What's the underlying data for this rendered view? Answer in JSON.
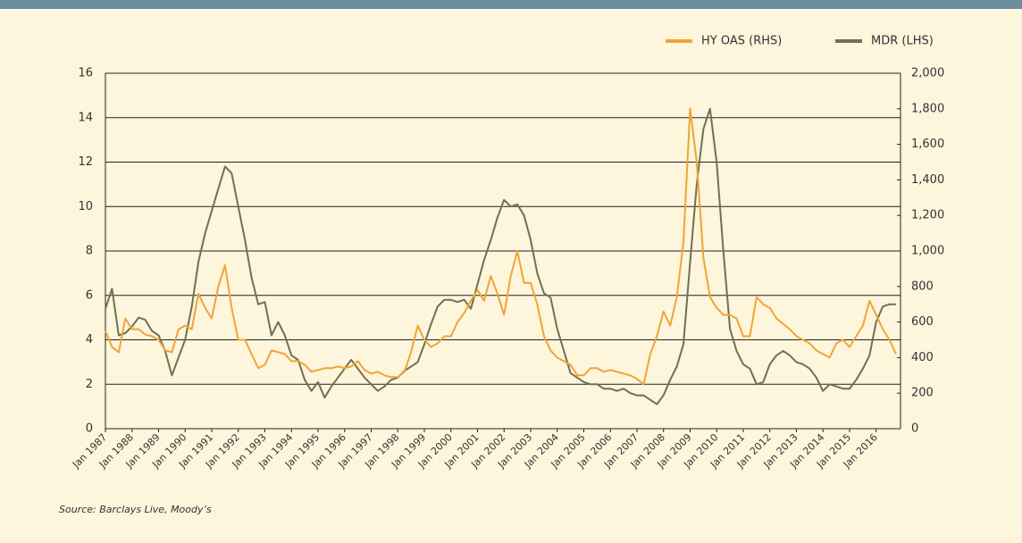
{
  "chart_data": {
    "type": "line",
    "source": "Source: Barclays Live, Moody’s",
    "x": [
      "1987-01",
      "1987-04",
      "1987-07",
      "1987-10",
      "1988-01",
      "1988-04",
      "1988-07",
      "1988-10",
      "1989-01",
      "1989-04",
      "1989-07",
      "1989-10",
      "1990-01",
      "1990-04",
      "1990-07",
      "1990-10",
      "1991-01",
      "1991-04",
      "1991-07",
      "1991-10",
      "1992-01",
      "1992-04",
      "1992-07",
      "1992-10",
      "1993-01",
      "1993-04",
      "1993-07",
      "1993-10",
      "1994-01",
      "1994-04",
      "1994-07",
      "1994-10",
      "1995-01",
      "1995-04",
      "1995-07",
      "1995-10",
      "1996-01",
      "1996-04",
      "1996-07",
      "1996-10",
      "1997-01",
      "1997-04",
      "1997-07",
      "1997-10",
      "1998-01",
      "1998-04",
      "1998-07",
      "1998-10",
      "1999-01",
      "1999-04",
      "1999-07",
      "1999-10",
      "2000-01",
      "2000-04",
      "2000-07",
      "2000-10",
      "2001-01",
      "2001-04",
      "2001-07",
      "2001-10",
      "2002-01",
      "2002-04",
      "2002-07",
      "2002-10",
      "2003-01",
      "2003-04",
      "2003-07",
      "2003-10",
      "2004-01",
      "2004-04",
      "2004-07",
      "2004-10",
      "2005-01",
      "2005-04",
      "2005-07",
      "2005-10",
      "2006-01",
      "2006-04",
      "2006-07",
      "2006-10",
      "2007-01",
      "2007-04",
      "2007-07",
      "2007-10",
      "2008-01",
      "2008-04",
      "2008-07",
      "2008-10",
      "2009-01",
      "2009-04",
      "2009-07",
      "2009-10",
      "2010-01",
      "2010-04",
      "2010-07",
      "2010-10",
      "2011-01",
      "2011-04",
      "2011-07",
      "2011-10",
      "2012-01",
      "2012-04",
      "2012-07",
      "2012-10",
      "2013-01",
      "2013-04",
      "2013-07",
      "2013-10",
      "2014-01",
      "2014-04",
      "2014-07",
      "2014-10",
      "2015-01",
      "2015-04",
      "2015-07",
      "2015-10",
      "2016-01",
      "2016-04",
      "2016-07",
      "2016-10"
    ],
    "xlim": [
      "1987-01",
      "2016-12"
    ],
    "xticks": [
      {
        "value": "1987-01",
        "label": "Jan 1987"
      },
      {
        "value": "1988-01",
        "label": "Jan 1988"
      },
      {
        "value": "1989-01",
        "label": "Jan 1989"
      },
      {
        "value": "1990-01",
        "label": "Jan 1990"
      },
      {
        "value": "1991-01",
        "label": "Jan 1991"
      },
      {
        "value": "1992-01",
        "label": "Jan 1992"
      },
      {
        "value": "1993-01",
        "label": "Jan 1993"
      },
      {
        "value": "1994-01",
        "label": "Jan 1994"
      },
      {
        "value": "1995-01",
        "label": "Jan 1995"
      },
      {
        "value": "1996-01",
        "label": "Jan 1996"
      },
      {
        "value": "1997-01",
        "label": "Jan 1997"
      },
      {
        "value": "1998-01",
        "label": "Jan 1998"
      },
      {
        "value": "1999-01",
        "label": "Jan 1999"
      },
      {
        "value": "2000-01",
        "label": "Jan 2000"
      },
      {
        "value": "2001-01",
        "label": "Jan 2001"
      },
      {
        "value": "2002-01",
        "label": "Jan 2002"
      },
      {
        "value": "2003-01",
        "label": "Jan 2003"
      },
      {
        "value": "2004-01",
        "label": "Jan 2004"
      },
      {
        "value": "2005-01",
        "label": "Jan 2005"
      },
      {
        "value": "2006-01",
        "label": "Jan 2006"
      },
      {
        "value": "2007-01",
        "label": "Jan 2007"
      },
      {
        "value": "2008-01",
        "label": "Jan 2008"
      },
      {
        "value": "2009-01",
        "label": "Jan 2009"
      },
      {
        "value": "2010-01",
        "label": "Jan 2010"
      },
      {
        "value": "2011-01",
        "label": "Jan 2011"
      },
      {
        "value": "2012-01",
        "label": "Jan 2012"
      },
      {
        "value": "2013-01",
        "label": "Jan 2013"
      },
      {
        "value": "2014-01",
        "label": "Jan 2014"
      },
      {
        "value": "2015-01",
        "label": "Jan 2015"
      },
      {
        "value": "2016-01",
        "label": "Jan 2016"
      }
    ],
    "ylim": [
      0,
      16
    ],
    "yticks": [
      0,
      2,
      4,
      6,
      8,
      10,
      12,
      14,
      16
    ],
    "y2lim": [
      0,
      2000
    ],
    "y2ticks": [
      0,
      200,
      400,
      600,
      800,
      {
        "value": 1000,
        "label": "1,000"
      },
      {
        "value": 1200,
        "label": "1,200"
      },
      {
        "value": 1400,
        "label": "1,400"
      },
      {
        "value": 1600,
        "label": "1,600"
      },
      {
        "value": 1800,
        "label": "1,800"
      },
      {
        "value": 2000,
        "label": "2,000"
      }
    ],
    "grid": true,
    "legend": "top-right",
    "series": [
      {
        "name": "HY OAS (RHS)",
        "color": "#f0a535",
        "axis": "y2",
        "values": [
          550,
          460,
          430,
          620,
          560,
          560,
          530,
          520,
          500,
          440,
          430,
          560,
          580,
          560,
          760,
          680,
          620,
          800,
          920,
          680,
          500,
          500,
          420,
          340,
          360,
          440,
          430,
          420,
          380,
          380,
          360,
          320,
          330,
          340,
          340,
          350,
          340,
          350,
          380,
          330,
          310,
          320,
          300,
          290,
          290,
          320,
          430,
          580,
          500,
          460,
          480,
          520,
          520,
          600,
          650,
          720,
          780,
          720,
          860,
          760,
          640,
          860,
          1000,
          820,
          820,
          700,
          520,
          440,
          400,
          380,
          360,
          300,
          300,
          340,
          340,
          320,
          330,
          320,
          310,
          300,
          280,
          250,
          420,
          520,
          660,
          580,
          740,
          1050,
          1800,
          1500,
          960,
          740,
          680,
          640,
          640,
          620,
          520,
          520,
          740,
          700,
          680,
          620,
          590,
          560,
          520,
          500,
          480,
          440,
          420,
          400,
          480,
          500,
          460,
          520,
          580,
          720,
          640,
          560,
          500,
          420
        ]
      },
      {
        "name": "MDR (LHS)",
        "color": "#6b7352",
        "values": [
          5.4,
          6.3,
          4.2,
          4.3,
          4.6,
          5.0,
          4.9,
          4.4,
          4.2,
          3.5,
          2.4,
          3.2,
          4.0,
          5.5,
          7.5,
          8.8,
          9.8,
          10.8,
          11.8,
          11.5,
          10.0,
          8.5,
          6.8,
          5.6,
          5.7,
          4.2,
          4.8,
          4.2,
          3.3,
          3.1,
          2.2,
          1.7,
          2.1,
          1.4,
          1.9,
          2.3,
          2.7,
          3.1,
          2.7,
          2.3,
          2.0,
          1.7,
          1.9,
          2.2,
          2.3,
          2.6,
          2.8,
          3.0,
          3.8,
          4.7,
          5.5,
          5.8,
          5.8,
          5.7,
          5.8,
          5.4,
          6.5,
          7.6,
          8.5,
          9.5,
          10.3,
          10.0,
          10.1,
          9.6,
          8.5,
          7.0,
          6.1,
          5.9,
          4.5,
          3.5,
          2.5,
          2.3,
          2.1,
          2.0,
          2.0,
          1.8,
          1.8,
          1.7,
          1.8,
          1.6,
          1.5,
          1.5,
          1.3,
          1.1,
          1.5,
          2.2,
          2.8,
          3.8,
          7.5,
          11.0,
          13.5,
          14.4,
          12.0,
          8.0,
          4.5,
          3.5,
          2.9,
          2.7,
          2.0,
          2.1,
          2.9,
          3.3,
          3.5,
          3.3,
          3.0,
          2.9,
          2.7,
          2.3,
          1.7,
          2.0,
          1.9,
          1.8,
          1.8,
          2.2,
          2.7,
          3.3,
          4.8,
          5.5,
          5.6,
          5.6
        ]
      }
    ]
  }
}
